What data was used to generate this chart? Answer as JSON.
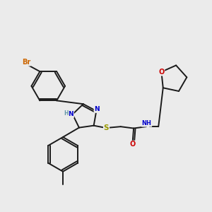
{
  "background_color": "#ebebeb",
  "bond_color": "#1a1a1a",
  "atom_colors": {
    "Br": "#cc6600",
    "N": "#0000cc",
    "S": "#999900",
    "O": "#cc0000",
    "H": "#6699aa",
    "C": "#1a1a1a"
  },
  "figsize": [
    3.0,
    3.0
  ],
  "dpi": 100
}
